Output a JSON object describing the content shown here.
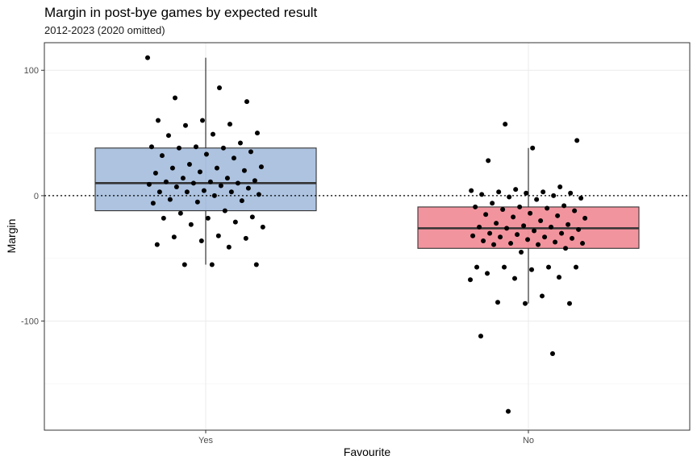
{
  "chart_data": {
    "type": "boxplot",
    "title": "Margin in post-bye games by expected result",
    "subtitle": "2012-2023 (2020 omitted)",
    "xlabel": "Favourite",
    "ylabel": "Margin",
    "categories": [
      "Yes",
      "No"
    ],
    "ylim": [
      -187,
      122
    ],
    "y_ticks": [
      100,
      0,
      -100
    ],
    "grid": true,
    "reference_line": 0,
    "boxes": [
      {
        "category": "Yes",
        "q1": -12,
        "median": 10,
        "q3": 38,
        "whisker_low": -55,
        "whisker_high": 110,
        "fill": "#6a91c6"
      },
      {
        "category": "No",
        "q1": -42,
        "median": -26,
        "q3": -9,
        "whisker_low": -86,
        "whisker_high": 38,
        "fill": "#e83c4f"
      }
    ],
    "points": [
      {
        "category": "Yes",
        "values": [
          110,
          86,
          78,
          75,
          60,
          60,
          57,
          56,
          50,
          49,
          48,
          42,
          39,
          39,
          38,
          38,
          35,
          33,
          32,
          30,
          25,
          23,
          22,
          22,
          20,
          19,
          18,
          14,
          14,
          12,
          11,
          11,
          10,
          10,
          9,
          8,
          7,
          6,
          4,
          3,
          3,
          3,
          1,
          0,
          -3,
          -4,
          -5,
          -6,
          -12,
          -14,
          -17,
          -18,
          -18,
          -21,
          -23,
          -25,
          -32,
          -33,
          -34,
          -36,
          -39,
          -41,
          -55,
          -55,
          -55
        ]
      },
      {
        "category": "No",
        "values": [
          57,
          44,
          38,
          28,
          7,
          5,
          4,
          3,
          3,
          2,
          2,
          1,
          0,
          -1,
          -2,
          -3,
          -6,
          -8,
          -9,
          -9,
          -10,
          -11,
          -12,
          -14,
          -15,
          -16,
          -17,
          -18,
          -20,
          -22,
          -23,
          -24,
          -25,
          -25,
          -26,
          -27,
          -28,
          -30,
          -30,
          -31,
          -32,
          -33,
          -33,
          -34,
          -35,
          -36,
          -37,
          -38,
          -38,
          -39,
          -39,
          -42,
          -45,
          -57,
          -57,
          -57,
          -57,
          -59,
          -62,
          -65,
          -66,
          -67,
          -80,
          -85,
          -86,
          -86,
          -112,
          -126,
          -172
        ]
      }
    ]
  }
}
